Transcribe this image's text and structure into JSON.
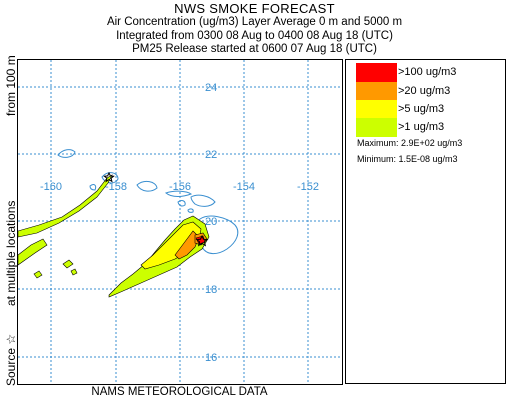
{
  "header": {
    "title": "NWS SMOKE FORECAST",
    "line1": "Air Concentration (ug/m3) Layer Average    0 m and  5000 m",
    "line2": "Integrated from 0300 08 Aug to 0400 08 Aug 18 (UTC)",
    "line3": "PM25 Release started at 0600 07 Aug 18 (UTC)"
  },
  "side_label": {
    "source": "Source ☆",
    "locations": "at multiple locations",
    "height": "from  100 m"
  },
  "footer": "NAMS METEOROLOGICAL DATA",
  "map": {
    "lat_labels": [
      "24",
      "22",
      "20",
      "18",
      "16"
    ],
    "lon_labels": [
      "-160",
      "-158",
      "-156",
      "-154",
      "-152"
    ],
    "grid_color": "#3a8fd0",
    "label_color": "#3a8fd0",
    "coast_color": "#3a8fd0"
  },
  "legend": {
    "levels": [
      {
        "label": ">100 ug/m3",
        "color": "#ff0000"
      },
      {
        "label": ">20 ug/m3",
        "color": "#ff9900"
      },
      {
        "label": ">5 ug/m3",
        "color": "#ffff00"
      },
      {
        "label": ">1 ug/m3",
        "color": "#ccff00"
      }
    ],
    "maximum": "Maximum: 2.9E+02 ug/m3",
    "minimum": "Minimum: 1.5E-08 ug/m3"
  }
}
